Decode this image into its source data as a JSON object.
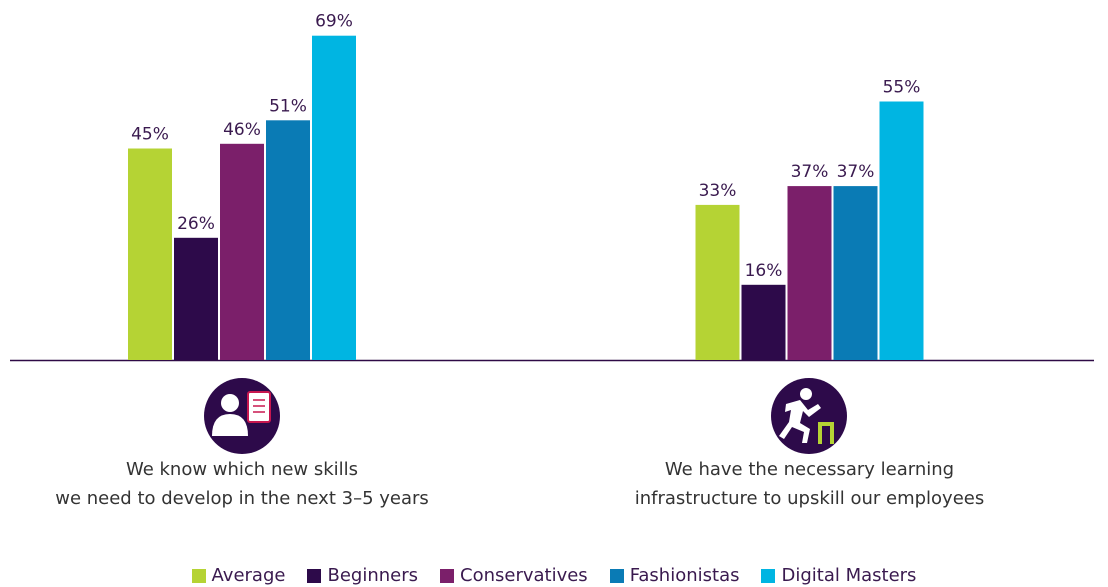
{
  "chart_data": {
    "type": "bar",
    "categories": [
      "We know which new skills\nwe need to develop in the next 3–5 years",
      "We have the necessary learning\ninfrastructure to upskill our employees"
    ],
    "series": [
      {
        "name": "Average",
        "color": "#b5d334",
        "values": [
          45,
          33
        ],
        "value_labels": [
          "45%",
          "33%"
        ]
      },
      {
        "name": "Beginners",
        "color": "#2d0a4a",
        "values": [
          26,
          16
        ],
        "value_labels": [
          "26%",
          "16%"
        ]
      },
      {
        "name": "Conservatives",
        "color": "#7b1f6a",
        "values": [
          46,
          37
        ],
        "value_labels": [
          "46%",
          "37%"
        ]
      },
      {
        "name": "Fashionistas",
        "color": "#0a7bb5",
        "values": [
          51,
          37
        ],
        "value_labels": [
          "51%",
          "37%"
        ]
      },
      {
        "name": "Digital Masters",
        "color": "#00b5e2",
        "values": [
          69,
          55
        ],
        "value_labels": [
          "69%",
          "55%"
        ]
      }
    ]
  }
}
